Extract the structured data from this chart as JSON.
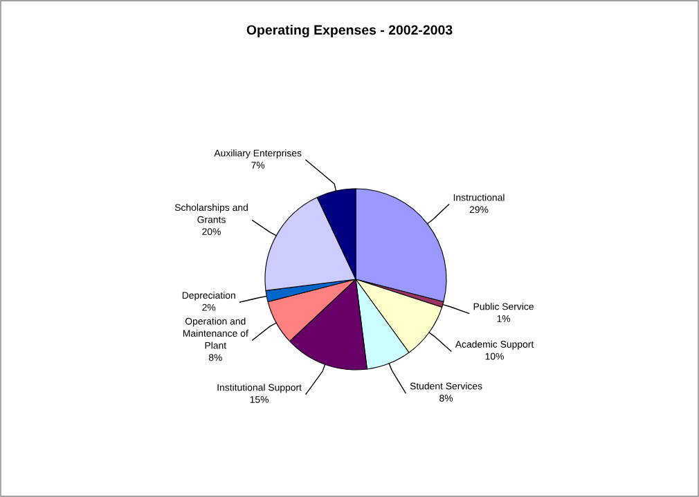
{
  "chart_data": {
    "type": "pie",
    "title": "Operating Expenses - 2002-2003",
    "categories": [
      "Instructional",
      "Public Service",
      "Academic Support",
      "Student Services",
      "Institutional Support",
      "Operation and\nMaintenance of\nPlant",
      "Depreciation",
      "Scholarships and\nGrants",
      "Auxiliary Enterprises"
    ],
    "values": [
      29,
      1,
      10,
      8,
      15,
      8,
      2,
      20,
      7
    ],
    "value_labels": [
      "29%",
      "1%",
      "10%",
      "8%",
      "15%",
      "8%",
      "2%",
      "20%",
      "7%"
    ],
    "colors": [
      "#9999ff",
      "#993366",
      "#ffffcc",
      "#ccffff",
      "#660066",
      "#ff8080",
      "#0066cc",
      "#ccccff",
      "#000080"
    ]
  }
}
